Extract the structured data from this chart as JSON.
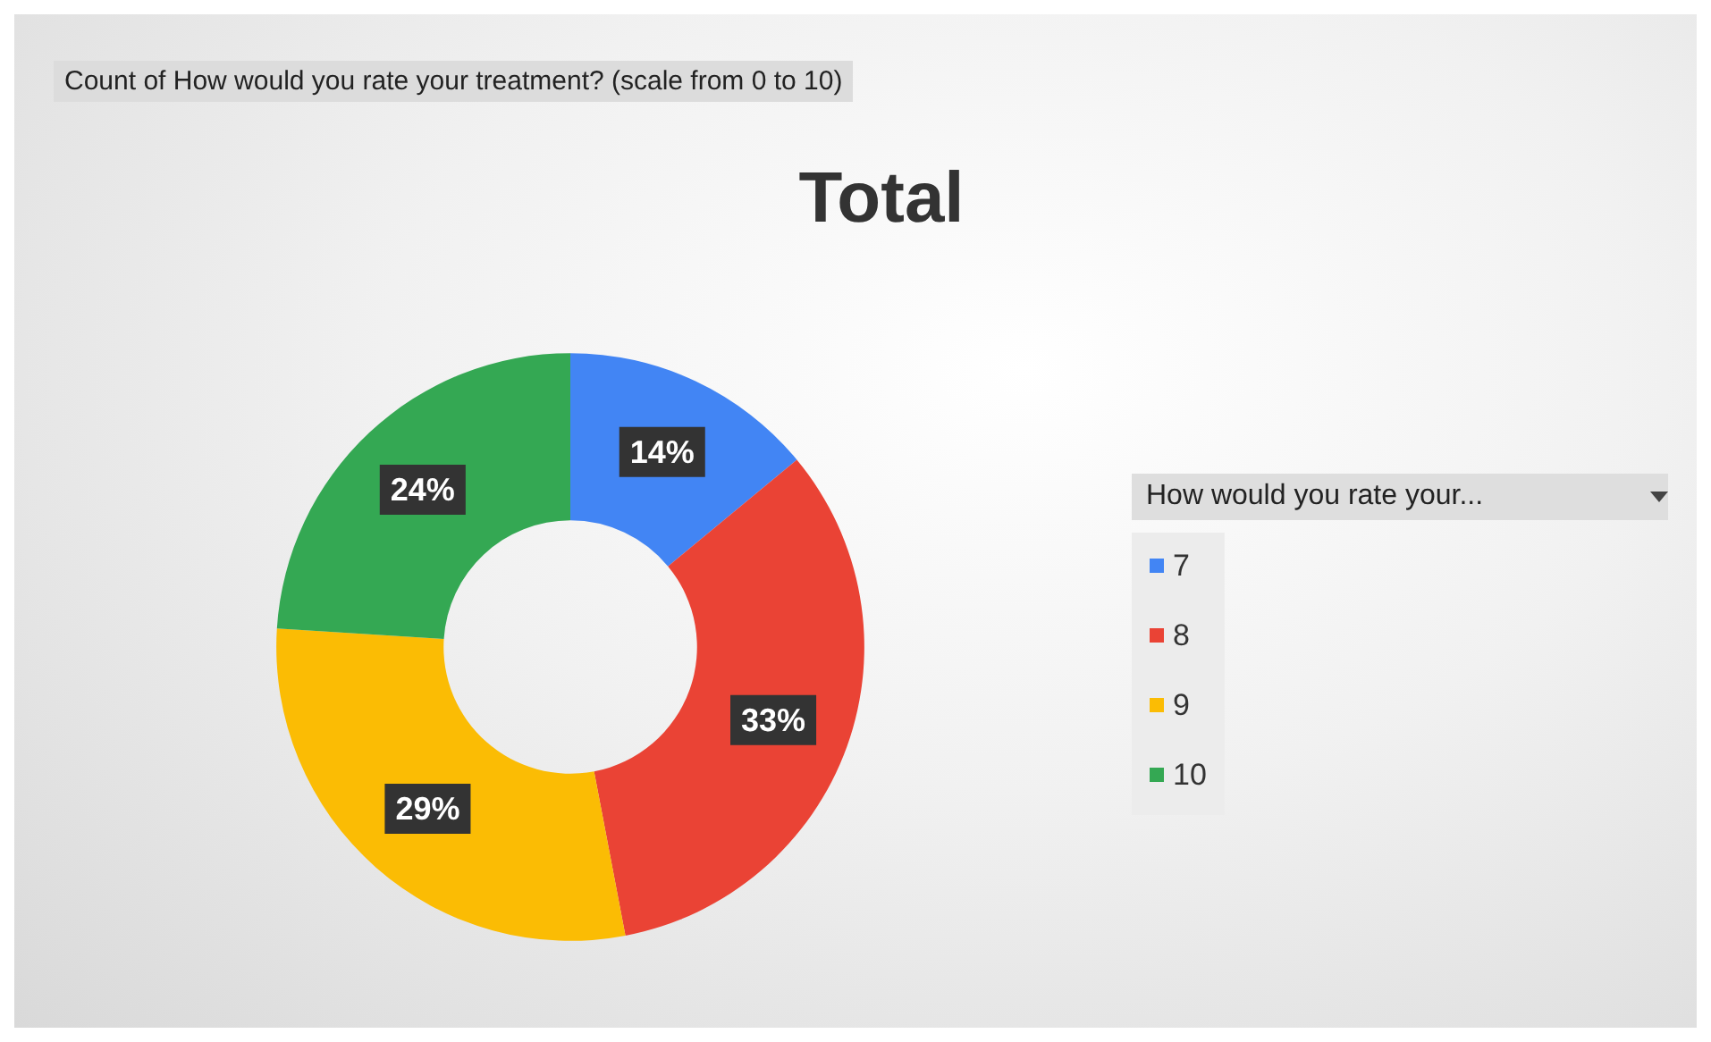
{
  "chart_data": {
    "type": "donut",
    "title": "Total",
    "legend_title": "How would you rate your...",
    "annotations": [
      "Count of How would you rate your treatment? (scale from 0 to 10)"
    ],
    "categories": [
      "7",
      "8",
      "9",
      "10"
    ],
    "values": [
      14,
      33,
      29,
      24
    ],
    "colors": [
      "#4285f4",
      "#ea4335",
      "#fbbc04",
      "#34a853"
    ],
    "value_labels": [
      "14%",
      "33%",
      "29%",
      "24%"
    ],
    "legend": "right"
  }
}
